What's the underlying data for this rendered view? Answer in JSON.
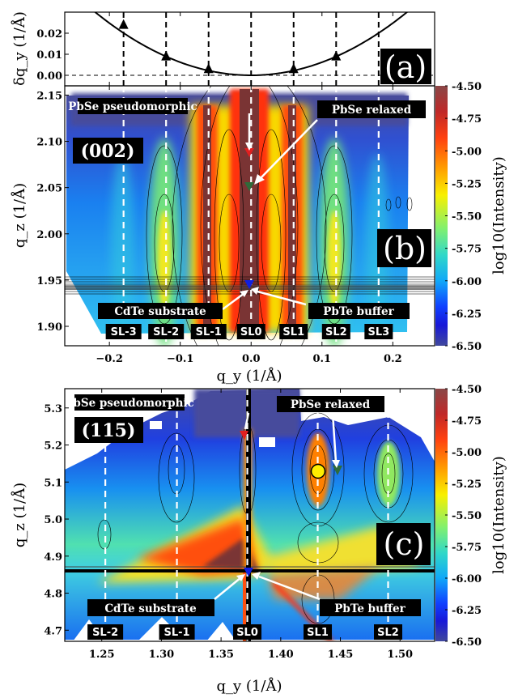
{
  "chart_data": [
    {
      "type": "line",
      "panel_label": "(a)",
      "ylabel": "δq_y (1/Å)",
      "ylim": [
        -0.005,
        0.03
      ],
      "xlim": [
        -0.263,
        0.259
      ],
      "yticks": [
        "0.00",
        "0.01",
        "0.02"
      ],
      "ytick_values": [
        0.0,
        0.01,
        0.02
      ],
      "curve": {
        "form": "parabola",
        "coefficient": 0.62
      },
      "markers": {
        "qy": [
          -0.18,
          -0.12,
          -0.06,
          0.06,
          0.12
        ],
        "dqy": [
          0.024,
          0.009,
          0.003,
          0.003,
          0.009
        ],
        "shape": "triangle"
      },
      "reference_lines_qy": [
        -0.18,
        -0.12,
        -0.06,
        0.0,
        0.06,
        0.12,
        0.18
      ],
      "zero_line": 0.0
    },
    {
      "type": "heatmap",
      "panel_label": "(b)",
      "reflection": "(002)",
      "xlabel": "q_y (1/Å)",
      "ylabel": "q_z (1/Å)",
      "xlim": [
        -0.263,
        0.259
      ],
      "ylim": [
        1.879,
        2.16
      ],
      "xticks": [
        "−0.2",
        "−0.1",
        "0.0",
        "0.1",
        "0.2"
      ],
      "xtick_values": [
        -0.2,
        -0.1,
        0.0,
        0.1,
        0.2
      ],
      "yticks": [
        "1.90",
        "1.95",
        "2.00",
        "2.05",
        "2.10",
        "2.15"
      ],
      "ytick_values": [
        1.9,
        1.95,
        2.0,
        2.05,
        2.1,
        2.15
      ],
      "colorbar": {
        "label": "log10(Intensity)",
        "range": [
          -6.5,
          -4.5
        ],
        "ticks": [
          "-4.50",
          "-4.75",
          "-5.00",
          "-5.25",
          "-5.50",
          "-5.75",
          "-6.00",
          "-6.25",
          "-6.50"
        ]
      },
      "satellites": [
        {
          "label": "SL-3",
          "qy": -0.18
        },
        {
          "label": "SL-2",
          "qy": -0.12
        },
        {
          "label": "SL-1",
          "qy": -0.06
        },
        {
          "label": "SL0",
          "qy": 0.0
        },
        {
          "label": "SL1",
          "qy": 0.06
        },
        {
          "label": "SL2",
          "qy": 0.12
        },
        {
          "label": "SL3",
          "qy": 0.18
        }
      ],
      "annotations": [
        {
          "text": "PbSe pseudomorphic",
          "marker": "red-triangle"
        },
        {
          "text": "PbSe relaxed",
          "marker": "green-triangle"
        },
        {
          "text": "CdTe substrate",
          "marker": "blue-triangle"
        },
        {
          "text": "PbTe buffer",
          "marker": "blue-triangle"
        }
      ]
    },
    {
      "type": "heatmap",
      "panel_label": "(c)",
      "reflection": "(115)",
      "xlabel": "q_y (1/Å)",
      "ylabel": "q_z (1/Å)",
      "xlim": [
        1.219,
        1.529
      ],
      "ylim": [
        4.67,
        5.352
      ],
      "xticks": [
        "1.25",
        "1.30",
        "1.35",
        "1.40",
        "1.45",
        "1.50"
      ],
      "xtick_values": [
        1.25,
        1.3,
        1.35,
        1.4,
        1.45,
        1.5
      ],
      "yticks": [
        "4.7",
        "4.8",
        "4.9",
        "5.0",
        "5.1",
        "5.2",
        "5.3"
      ],
      "ytick_values": [
        4.7,
        4.8,
        4.9,
        5.0,
        5.1,
        5.2,
        5.3
      ],
      "colorbar": {
        "label": "log10(Intensity)",
        "range": [
          -6.5,
          -4.5
        ],
        "ticks": [
          "-4.50",
          "-4.75",
          "-5.00",
          "-5.25",
          "-5.50",
          "-5.75",
          "-6.00",
          "-6.25",
          "-6.50"
        ]
      },
      "satellites": [
        {
          "label": "SL-2",
          "qy": 1.253
        },
        {
          "label": "SL-1",
          "qy": 1.313
        },
        {
          "label": "SL0",
          "qy": 1.372
        },
        {
          "label": "SL1",
          "qy": 1.431
        },
        {
          "label": "SL2",
          "qy": 1.49
        }
      ],
      "annotations": [
        {
          "text": "PbSe pseudomorphic",
          "marker": "red-triangle"
        },
        {
          "text": "PbSe relaxed",
          "marker": "green-triangle"
        },
        {
          "text": "CdTe substrate",
          "marker": "blue-triangle"
        },
        {
          "text": "PbTe buffer",
          "marker": "blue-triangle"
        }
      ],
      "extra_marker": "yellow-circle"
    }
  ],
  "colors": {
    "red_marker": "#e02020",
    "green_marker": "#2f6b3a",
    "blue_marker": "#1020e0",
    "yellow_marker": "#ffee00"
  }
}
